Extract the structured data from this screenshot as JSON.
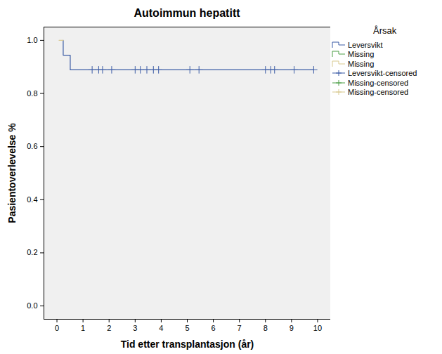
{
  "chart_data": {
    "type": "line",
    "title": "Autoimmun hepatitt",
    "x_label": "Tid etter transplantasjon (år)",
    "y_label": "Pasientoverlevelse %",
    "legend_title": "Årsak",
    "legend": "right",
    "xlim": [
      -0.5,
      10.5
    ],
    "xticks": [
      0,
      1,
      2,
      3,
      4,
      5,
      6,
      7,
      8,
      9,
      10
    ],
    "ylim": [
      -0.05,
      1.05
    ],
    "yticks": [
      {
        "value": 0,
        "label": "0.0"
      },
      0.2,
      0.4,
      0.6,
      0.8,
      {
        "value": 1,
        "label": "1.0"
      }
    ],
    "series": [
      {
        "name": "Leversvikt",
        "color": "#3b5ba5",
        "line_style": "step",
        "x": [
          0.24,
          0.24,
          0.51,
          9.85
        ],
        "values": [
          1,
          0.944,
          0.889,
          0.889
        ]
      },
      {
        "name": "Missing",
        "color": "#4c9e47",
        "line_style": "step",
        "x": [],
        "values": []
      },
      {
        "name": "Missing",
        "color": "#d8c98f",
        "line_style": "step",
        "x": [
          0.08,
          0.24
        ],
        "values": [
          1,
          1
        ]
      },
      {
        "name": "Leversvikt-censored",
        "color": "#3b5ba5",
        "marker": "plus",
        "x": [
          1.35,
          1.6,
          1.75,
          2.1,
          3.0,
          3.2,
          3.45,
          3.7,
          3.9,
          5.1,
          5.45,
          8.0,
          8.2,
          8.35,
          9.1,
          9.85
        ],
        "values": [
          0.889,
          0.889,
          0.889,
          0.889,
          0.889,
          0.889,
          0.889,
          0.889,
          0.889,
          0.889,
          0.889,
          0.889,
          0.889,
          0.889,
          0.889,
          0.889
        ]
      },
      {
        "name": "Missing-censored",
        "color": "#4c9e47",
        "marker": "plus",
        "x": [],
        "values": []
      },
      {
        "name": "Missing-censored",
        "color": "#d8c98f",
        "marker": "plus",
        "x": [],
        "values": []
      }
    ]
  }
}
